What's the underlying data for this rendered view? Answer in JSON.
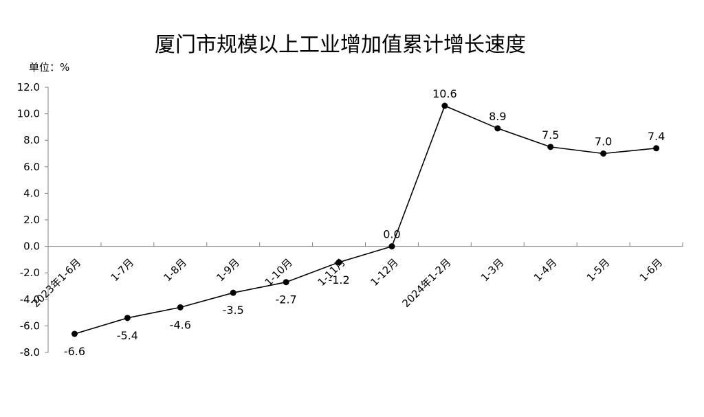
{
  "chart_data": {
    "type": "line",
    "title": "厦门市规模以上工业增加值累计增长速度",
    "unit_label": "单位：%",
    "categories": [
      "2023年1-6月",
      "1-7月",
      "1-8月",
      "1-9月",
      "1-10月",
      "1-11月",
      "1-12月",
      "2024年1-2月",
      "1-3月",
      "1-4月",
      "1-5月",
      "1-6月"
    ],
    "series": [
      {
        "values": [
          -6.6,
          -5.4,
          -4.6,
          -3.5,
          -2.7,
          -1.2,
          0.0,
          10.6,
          8.9,
          7.5,
          7.0,
          7.4
        ],
        "labels": [
          "-6.6",
          "-5.4",
          "-4.6",
          "-3.5",
          "-2.7",
          "-1.2",
          "0.0",
          "10.6",
          "8.9",
          "7.5",
          "7.0",
          "7.4"
        ]
      }
    ],
    "yticks": [
      "12.0",
      "10.0",
      "8.0",
      "6.0",
      "4.0",
      "2.0",
      "0.0",
      "-2.0",
      "-4.0",
      "-6.0",
      "-8.0"
    ],
    "ylim": [
      -8,
      12
    ],
    "grid": false,
    "legend": "none",
    "line_color": "#000000"
  }
}
